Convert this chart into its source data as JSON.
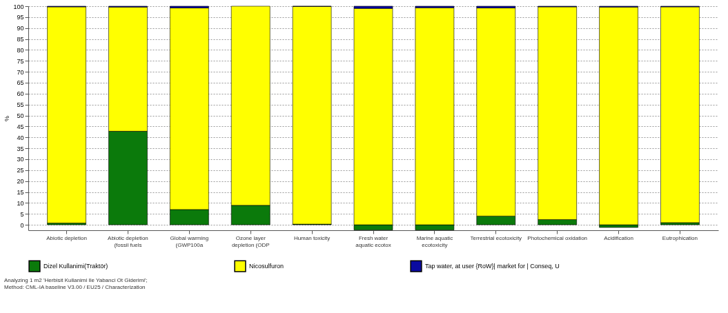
{
  "chart_data": {
    "type": "bar",
    "stacked": true,
    "ylabel": "%",
    "categories": [
      "Abiotic depletion",
      "Abiotic depletion\n(fossil fuels",
      "Global warming\n(GWP100a",
      "Ozone layer\ndepletion (ODP",
      "Human toxicity",
      "Fresh water\naquatic ecotox",
      "Marine aquatic\necotoxicity",
      "Terrestrial ecotoxicity",
      "Photochemical oxidation",
      "Acidification",
      "Eutrophication"
    ],
    "series": [
      {
        "name": "Dizel Kullanimi(Traktör)",
        "color": "#0b7a0b",
        "values": [
          0.8,
          42.8,
          7,
          8.9,
          0.3,
          -2.4,
          -2.4,
          4,
          2.4,
          -1.2,
          1
        ]
      },
      {
        "name": "Nicosulfuron",
        "color": "#ffff00",
        "values": [
          98.9,
          56.8,
          92.2,
          91.1,
          99.6,
          99,
          99.3,
          95.2,
          97.3,
          99.6,
          98.7
        ]
      },
      {
        "name": "Tap water, at user {RoW}| market for | Conseq, U",
        "color": "#0a0aa0",
        "values": [
          0.3,
          0.4,
          0.8,
          null,
          0.1,
          1,
          0.7,
          0.8,
          0.3,
          0.4,
          0.3
        ]
      }
    ],
    "ylim": [
      -2.5,
      100
    ],
    "yticks": [
      0,
      5,
      10,
      15,
      20,
      25,
      30,
      35,
      40,
      45,
      50,
      55,
      60,
      65,
      70,
      75,
      80,
      85,
      90,
      95,
      100
    ],
    "grid": "y",
    "legend": "bottom",
    "annotations": [
      "Analyzing 1 m2 'Herbisit Kullanimi Ile Yabanci Ot Giderimi';",
      "Method: CML-IA baseline V3.00 / EU25 / Characterization"
    ]
  }
}
